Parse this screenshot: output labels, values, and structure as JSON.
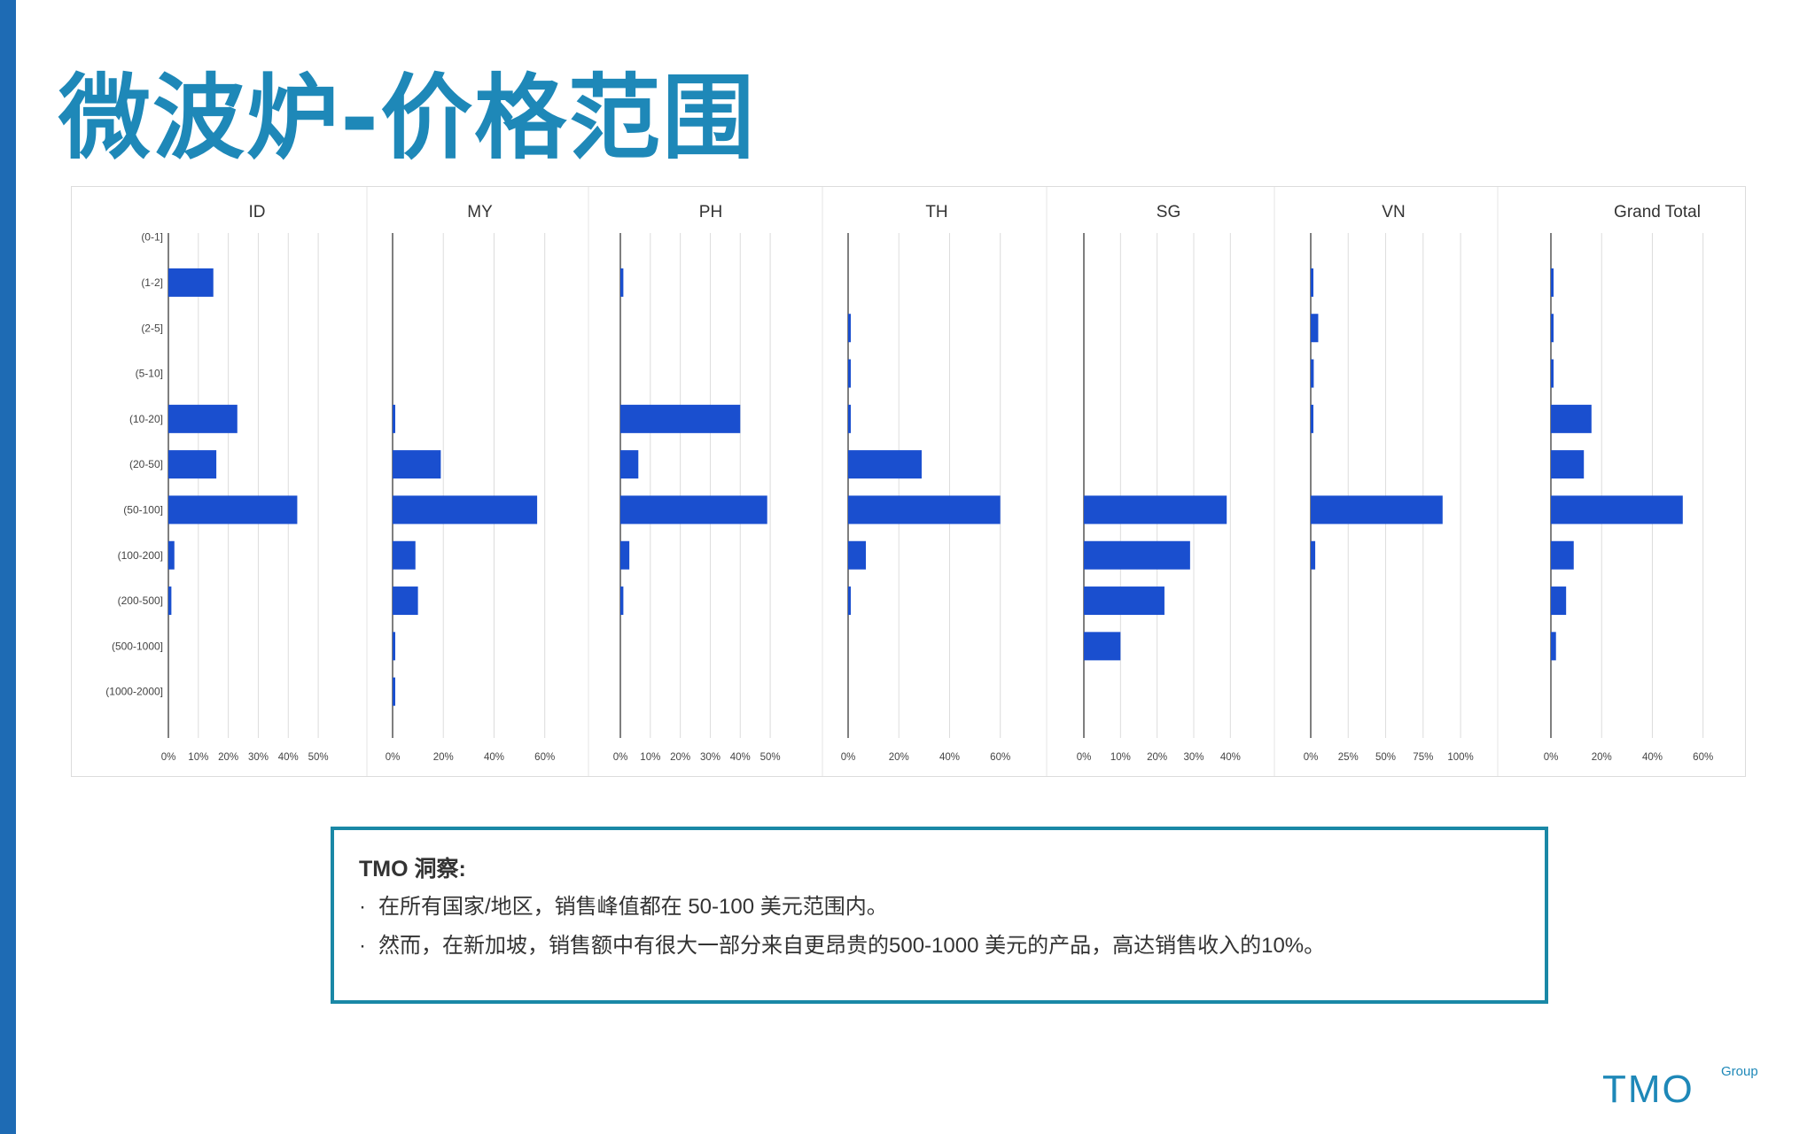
{
  "title": "微波炉-价格范围",
  "colors": {
    "bar": "#1a4fcf",
    "title": "#1e88b8",
    "accent": "#1a88a6",
    "side_bar": "#1e6bb4",
    "logo": "#1e88b8"
  },
  "chart_data": {
    "type": "bar",
    "orientation": "horizontal",
    "categories": [
      "(0-1]",
      "(1-2]",
      "(2-5]",
      "(5-10]",
      "(10-20]",
      "(20-50]",
      "(50-100]",
      "(100-200]",
      "(200-500]",
      "(500-1000]",
      "(1000-2000]"
    ],
    "panels": [
      {
        "name": "ID",
        "xlim": [
          0,
          55
        ],
        "ticks": [
          0,
          10,
          20,
          30,
          40,
          50
        ],
        "tick_labels": [
          "0%",
          "10%",
          "20%",
          "30%",
          "40%",
          "50%"
        ],
        "values": [
          0,
          15,
          0,
          0,
          23,
          16,
          43,
          2,
          1,
          0,
          0
        ]
      },
      {
        "name": "MY",
        "xlim": [
          0,
          65
        ],
        "ticks": [
          0,
          20,
          40,
          60
        ],
        "tick_labels": [
          "0%",
          "20%",
          "40%",
          "60%"
        ],
        "values": [
          0,
          0,
          0,
          0,
          1,
          19,
          57,
          9,
          10,
          1,
          1
        ]
      },
      {
        "name": "PH",
        "xlim": [
          0,
          55
        ],
        "ticks": [
          0,
          10,
          20,
          30,
          40,
          50
        ],
        "tick_labels": [
          "0%",
          "10%",
          "20%",
          "30%",
          "40%",
          "50%"
        ],
        "values": [
          0,
          1,
          0,
          0,
          40,
          6,
          49,
          3,
          1,
          0,
          0
        ]
      },
      {
        "name": "TH",
        "xlim": [
          0,
          65
        ],
        "ticks": [
          0,
          20,
          40,
          60
        ],
        "tick_labels": [
          "0%",
          "20%",
          "40%",
          "60%"
        ],
        "values": [
          0,
          0,
          1,
          1,
          1,
          29,
          60,
          7,
          1,
          0,
          0
        ]
      },
      {
        "name": "SG",
        "xlim": [
          0,
          45
        ],
        "ticks": [
          0,
          10,
          20,
          30,
          40
        ],
        "tick_labels": [
          "0%",
          "10%",
          "20%",
          "30%",
          "40%"
        ],
        "values": [
          0,
          0,
          0,
          0,
          0,
          0,
          39,
          29,
          22,
          10,
          0
        ]
      },
      {
        "name": "VN",
        "xlim": [
          0,
          110
        ],
        "ticks": [
          0,
          25,
          50,
          75,
          100
        ],
        "tick_labels": [
          "0%",
          "25%",
          "50%",
          "75%",
          "100%"
        ],
        "values": [
          0,
          1,
          5,
          2,
          1,
          0,
          88,
          3,
          0,
          0,
          0
        ]
      },
      {
        "name": "Grand Total",
        "xlim": [
          0,
          65
        ],
        "ticks": [
          0,
          20,
          40,
          60
        ],
        "tick_labels": [
          "0%",
          "20%",
          "40%",
          "60%"
        ],
        "values": [
          0,
          1,
          1,
          1,
          16,
          13,
          52,
          9,
          6,
          2,
          0
        ]
      }
    ],
    "grid": true,
    "legend": "none"
  },
  "insight": {
    "title": "TMO 洞察:",
    "bullets": [
      "在所有国家/地区，销售峰值都在 50-100 美元范围内。",
      "然而，在新加坡，销售额中有很大一部分来自更昂贵的500-1000 美元的产品，高达销售收入的10%。"
    ],
    "bullet_glyph": "·"
  },
  "logo": {
    "main": "TMO",
    "sub": "Group"
  }
}
